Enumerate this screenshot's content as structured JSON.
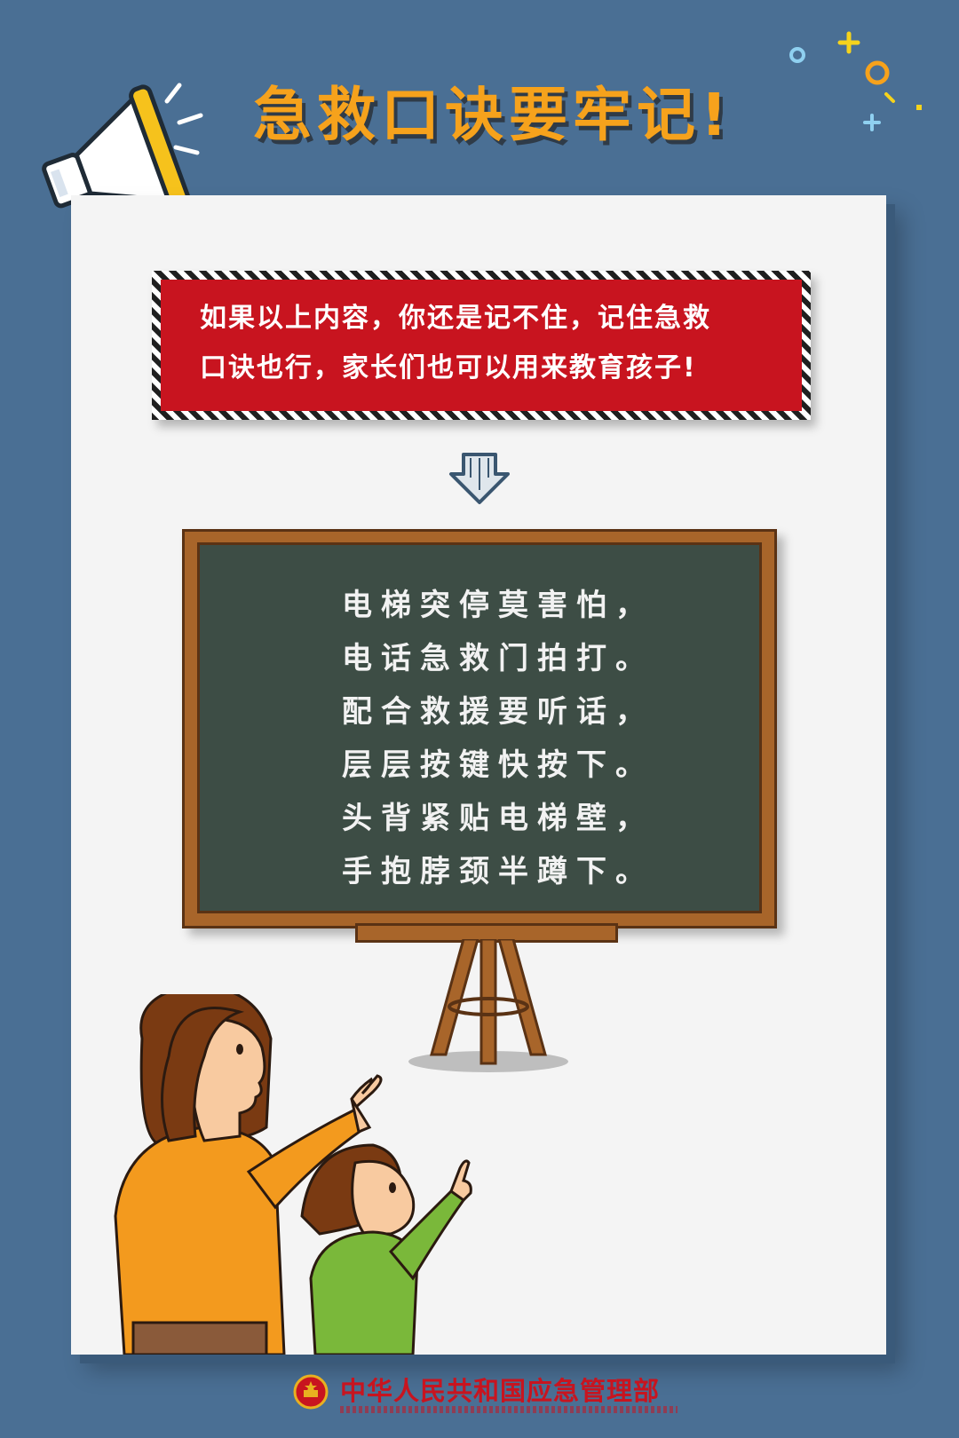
{
  "title": "急救口诀要牢记!",
  "notice": {
    "line1": "如果以上内容，你还是记不住，记住急救",
    "line2": "口诀也行，家长们也可以用来教育孩子!"
  },
  "poem": [
    "电梯突停莫害怕，",
    "电话急救门拍打。",
    "配合救援要听话，",
    "层层按键快按下。",
    "头背紧贴电梯壁，",
    "手抱脖颈半蹲下。"
  ],
  "footer": {
    "org_name": "中华人民共和国应急管理部"
  },
  "colors": {
    "background": "#4a6f94",
    "title": "#f6a21c",
    "notice_red": "#c8141f",
    "chalkboard": "#3d4d45",
    "wood": "#a8652a"
  },
  "icons": {
    "megaphone": "megaphone-icon",
    "arrow": "down-arrow-icon",
    "emblem": "national-emblem-icon"
  }
}
